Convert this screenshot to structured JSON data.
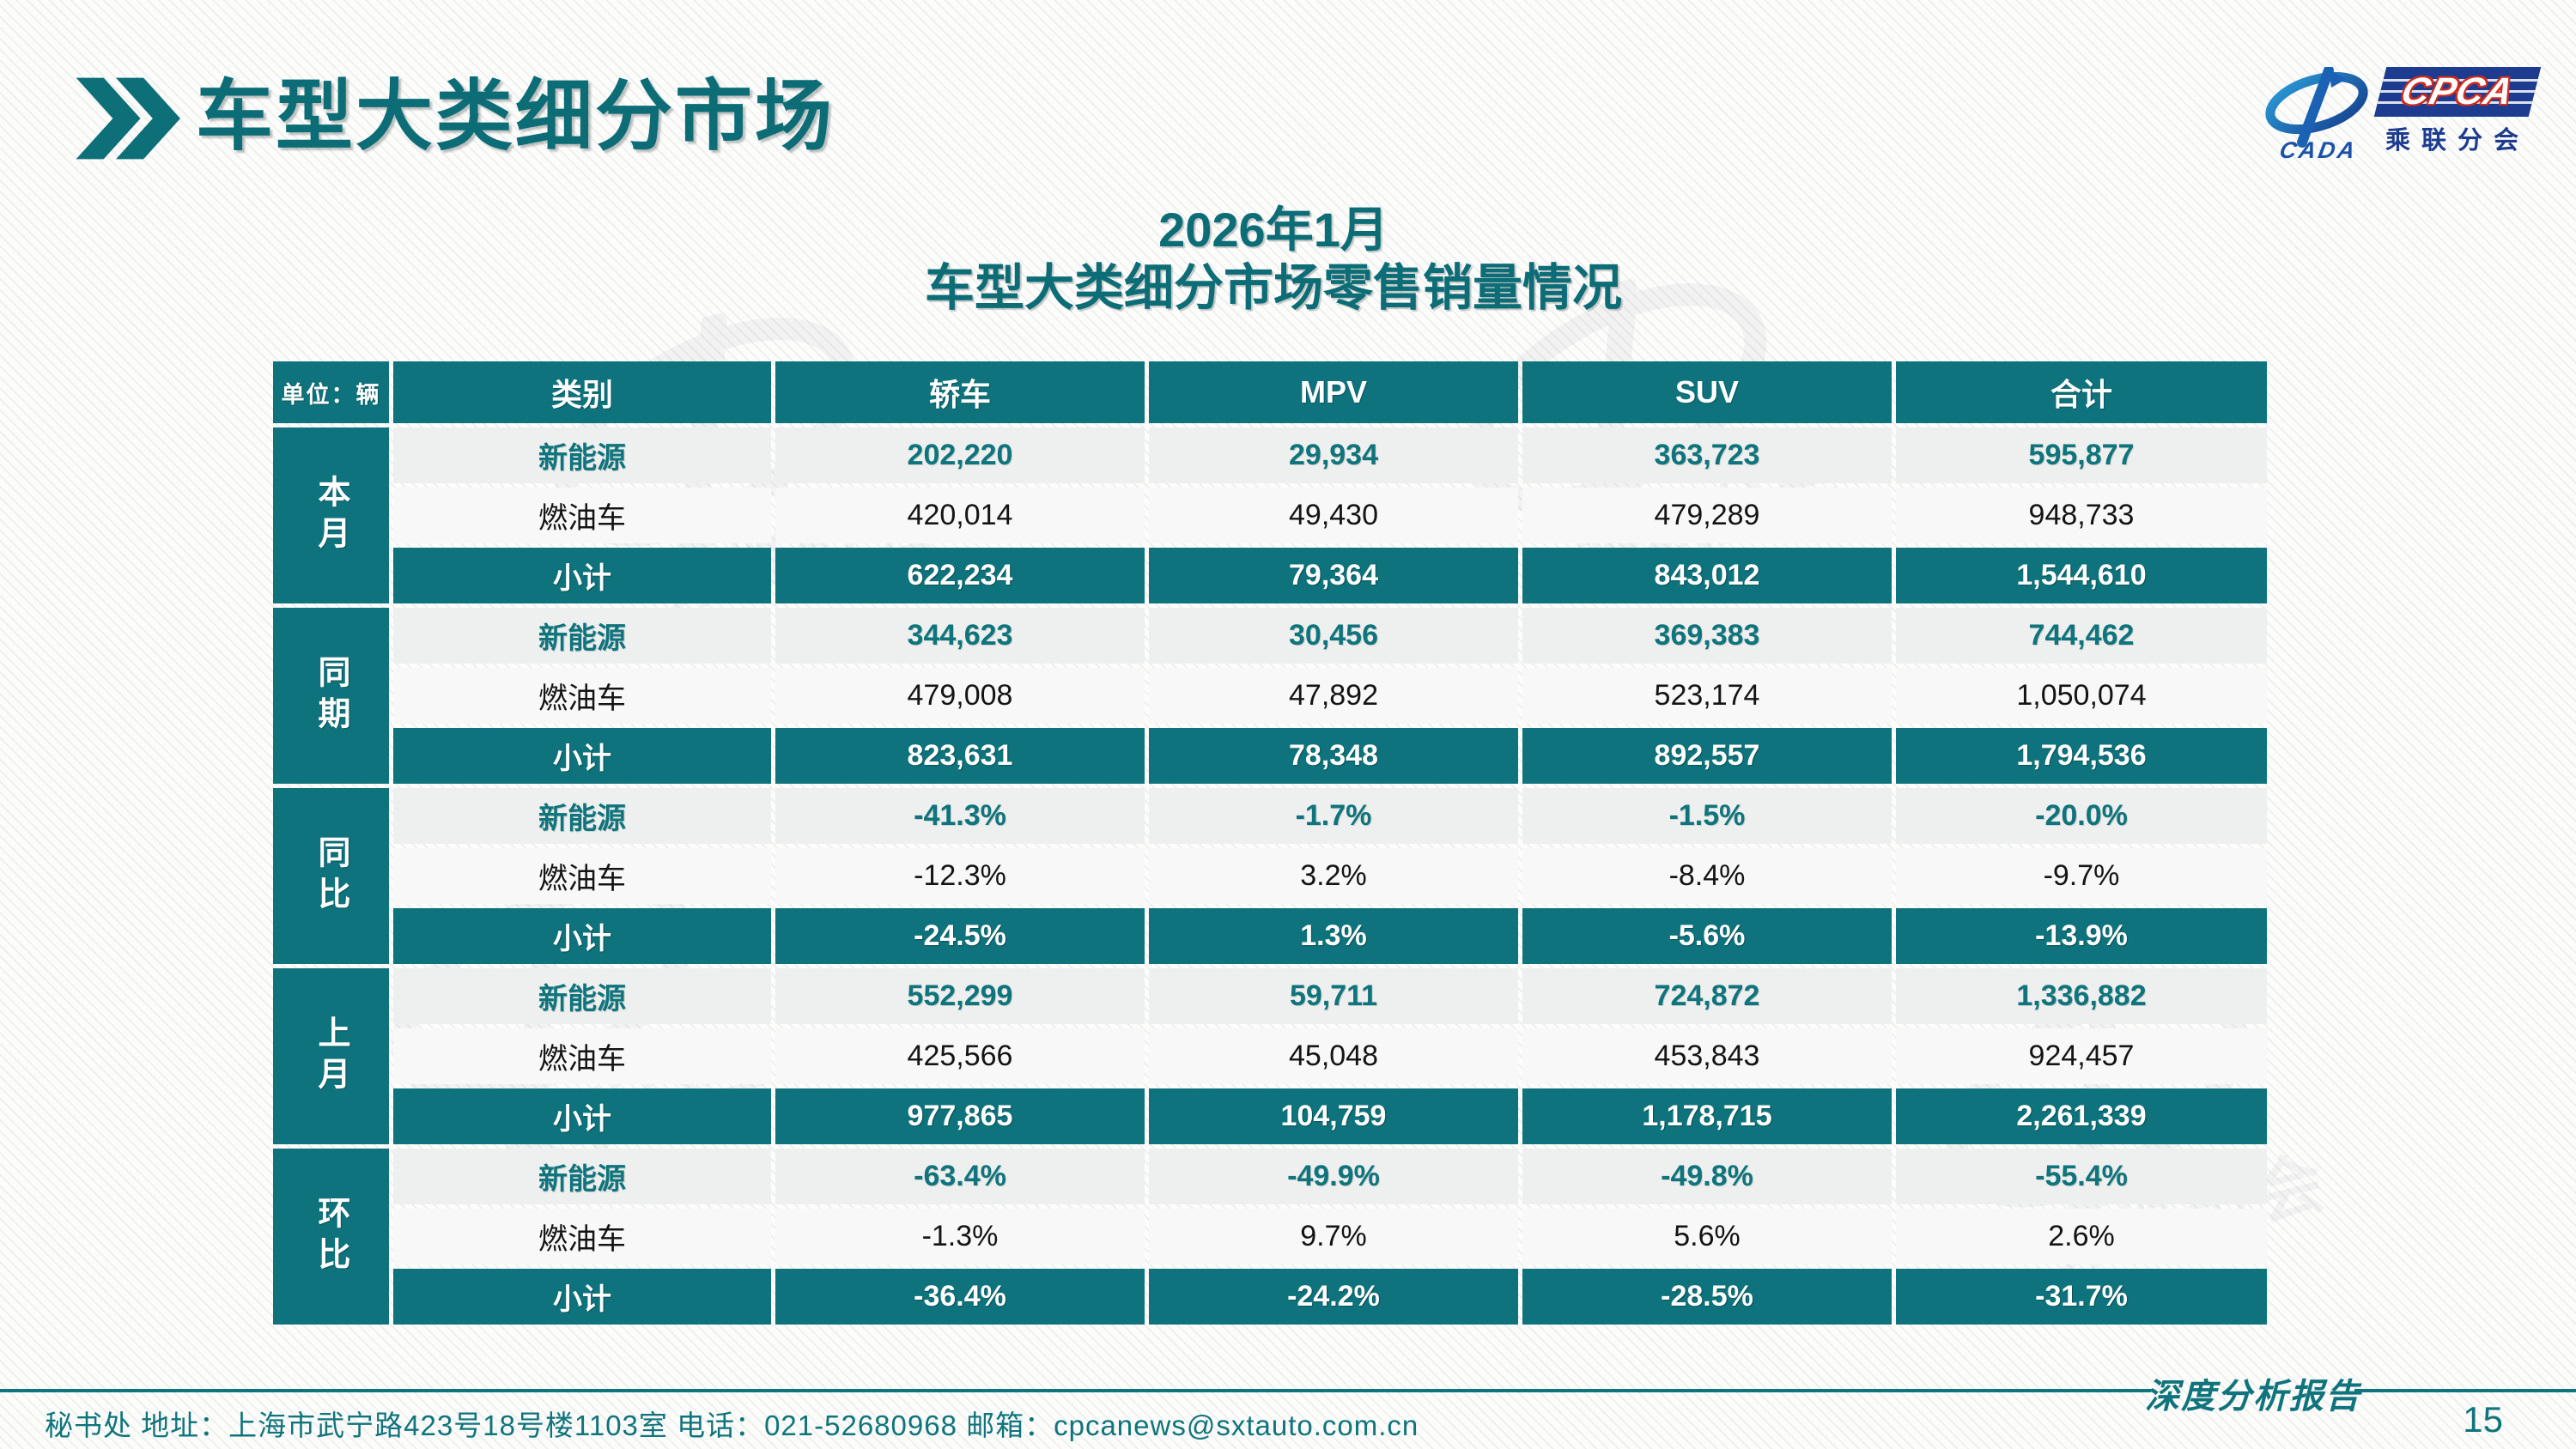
{
  "header": {
    "title": "车型大类细分市场"
  },
  "logo": {
    "cada_text": "CADA",
    "cpca_text": "CPCA",
    "branch_text": "乘联分会"
  },
  "table_title": {
    "line1": "2026年1月",
    "line2": "车型大类细分市场零售销量情况"
  },
  "table": {
    "unit_label": "单位：辆",
    "columns": [
      "类别",
      "轿车",
      "MPV",
      "SUV",
      "合计"
    ],
    "groups": [
      {
        "label": "本月",
        "rows": [
          {
            "category": "新能源",
            "values": [
              "202,220",
              "29,934",
              "363,723",
              "595,877"
            ]
          },
          {
            "category": "燃油车",
            "values": [
              "420,014",
              "49,430",
              "479,289",
              "948,733"
            ]
          },
          {
            "category": "小计",
            "values": [
              "622,234",
              "79,364",
              "843,012",
              "1,544,610"
            ]
          }
        ]
      },
      {
        "label": "同期",
        "rows": [
          {
            "category": "新能源",
            "values": [
              "344,623",
              "30,456",
              "369,383",
              "744,462"
            ]
          },
          {
            "category": "燃油车",
            "values": [
              "479,008",
              "47,892",
              "523,174",
              "1,050,074"
            ]
          },
          {
            "category": "小计",
            "values": [
              "823,631",
              "78,348",
              "892,557",
              "1,794,536"
            ]
          }
        ]
      },
      {
        "label": "同比",
        "rows": [
          {
            "category": "新能源",
            "values": [
              "-41.3%",
              "-1.7%",
              "-1.5%",
              "-20.0%"
            ]
          },
          {
            "category": "燃油车",
            "values": [
              "-12.3%",
              "3.2%",
              "-8.4%",
              "-9.7%"
            ]
          },
          {
            "category": "小计",
            "values": [
              "-24.5%",
              "1.3%",
              "-5.6%",
              "-13.9%"
            ]
          }
        ]
      },
      {
        "label": "上月",
        "rows": [
          {
            "category": "新能源",
            "values": [
              "552,299",
              "59,711",
              "724,872",
              "1,336,882"
            ]
          },
          {
            "category": "燃油车",
            "values": [
              "425,566",
              "45,048",
              "453,843",
              "924,457"
            ]
          },
          {
            "category": "小计",
            "values": [
              "977,865",
              "104,759",
              "1,178,715",
              "2,261,339"
            ]
          }
        ]
      },
      {
        "label": "环比",
        "rows": [
          {
            "category": "新能源",
            "values": [
              "-63.4%",
              "-49.9%",
              "-49.8%",
              "-55.4%"
            ]
          },
          {
            "category": "燃油车",
            "values": [
              "-1.3%",
              "9.7%",
              "5.6%",
              "2.6%"
            ]
          },
          {
            "category": "小计",
            "values": [
              "-36.4%",
              "-24.2%",
              "-28.5%",
              "-31.7%"
            ]
          }
        ]
      }
    ]
  },
  "footer": {
    "secretariat": "秘书处   地址：上海市武宁路423号18号楼1103室  电话：021-52680968   邮箱：cpcanews@sxtauto.com.cn",
    "report_label": "深度分析报告",
    "page_number": "15"
  },
  "colors": {
    "teal": "#0e737c",
    "logo_blue": "#1d3c8f",
    "logo_red": "#d12a1f"
  }
}
